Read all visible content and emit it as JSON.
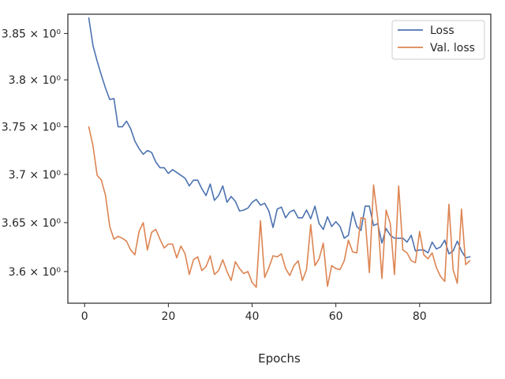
{
  "chart_data": {
    "type": "line",
    "xlabel": "Epochs",
    "ylabel": "",
    "xlim": [
      -4,
      97
    ],
    "ylim": [
      3.568,
      3.871
    ],
    "yscale": "log",
    "grid": false,
    "legend_position": "top-right",
    "x_ticks": [
      {
        "value": 0,
        "label": "0"
      },
      {
        "value": 20,
        "label": "20"
      },
      {
        "value": 40,
        "label": "40"
      },
      {
        "value": 60,
        "label": "60"
      },
      {
        "value": 80,
        "label": "80"
      }
    ],
    "y_ticks": [
      {
        "value": 3.6,
        "label": "3.6 × 10⁰"
      },
      {
        "value": 3.65,
        "label": "3.65 × 10⁰"
      },
      {
        "value": 3.7,
        "label": "3.7 × 10⁰"
      },
      {
        "value": 3.75,
        "label": "3.75 × 10⁰"
      },
      {
        "value": 3.8,
        "label": "3.8 × 10⁰"
      },
      {
        "value": 3.85,
        "label": "3.85 × 10⁰"
      }
    ],
    "series": [
      {
        "name": "Loss",
        "color": "#4c72b0",
        "x": [
          1,
          2,
          3,
          4,
          5,
          6,
          7,
          8,
          9,
          10,
          11,
          12,
          13,
          14,
          15,
          16,
          17,
          18,
          19,
          20,
          21,
          22,
          23,
          24,
          25,
          26,
          27,
          28,
          29,
          30,
          31,
          32,
          33,
          34,
          35,
          36,
          37,
          38,
          39,
          40,
          41,
          42,
          43,
          44,
          45,
          46,
          47,
          48,
          49,
          50,
          51,
          52,
          53,
          54,
          55,
          56,
          57,
          58,
          59,
          60,
          61,
          62,
          63,
          64,
          65,
          66,
          67,
          68,
          69,
          70,
          71,
          72,
          73,
          74,
          75,
          76,
          77,
          78,
          79,
          80,
          81,
          82,
          83,
          84,
          85,
          86,
          87,
          88,
          89,
          90,
          91,
          92
        ],
        "y": [
          3.867,
          3.837,
          3.82,
          3.805,
          3.791,
          3.779,
          3.78,
          3.75,
          3.75,
          3.756,
          3.748,
          3.735,
          3.727,
          3.721,
          3.725,
          3.723,
          3.713,
          3.707,
          3.707,
          3.701,
          3.705,
          3.702,
          3.699,
          3.696,
          3.688,
          3.694,
          3.694,
          3.685,
          3.678,
          3.69,
          3.673,
          3.678,
          3.688,
          3.671,
          3.677,
          3.672,
          3.662,
          3.663,
          3.665,
          3.671,
          3.674,
          3.668,
          3.67,
          3.662,
          3.645,
          3.664,
          3.666,
          3.655,
          3.661,
          3.663,
          3.655,
          3.655,
          3.663,
          3.654,
          3.667,
          3.649,
          3.643,
          3.656,
          3.646,
          3.651,
          3.646,
          3.634,
          3.637,
          3.661,
          3.646,
          3.642,
          3.667,
          3.667,
          3.647,
          3.649,
          3.629,
          3.644,
          3.637,
          3.634,
          3.634,
          3.634,
          3.63,
          3.637,
          3.621,
          3.622,
          3.622,
          3.619,
          3.63,
          3.623,
          3.625,
          3.632,
          3.618,
          3.621,
          3.631,
          3.621,
          3.614,
          3.615
        ]
      },
      {
        "name": "Val. loss",
        "color": "#dd8452",
        "x": [
          1,
          2,
          3,
          4,
          5,
          6,
          7,
          8,
          9,
          10,
          11,
          12,
          13,
          14,
          15,
          16,
          17,
          18,
          19,
          20,
          21,
          22,
          23,
          24,
          25,
          26,
          27,
          28,
          29,
          30,
          31,
          32,
          33,
          34,
          35,
          36,
          37,
          38,
          39,
          40,
          41,
          42,
          43,
          44,
          45,
          46,
          47,
          48,
          49,
          50,
          51,
          52,
          53,
          54,
          55,
          56,
          57,
          58,
          59,
          60,
          61,
          62,
          63,
          64,
          65,
          66,
          67,
          68,
          69,
          70,
          71,
          72,
          73,
          74,
          75,
          76,
          77,
          78,
          79,
          80,
          81,
          82,
          83,
          84,
          85,
          86,
          87,
          88,
          89,
          90,
          91,
          92
        ],
        "y": [
          3.75,
          3.73,
          3.699,
          3.694,
          3.678,
          3.646,
          3.633,
          3.636,
          3.634,
          3.631,
          3.622,
          3.617,
          3.641,
          3.65,
          3.622,
          3.64,
          3.643,
          3.633,
          3.624,
          3.628,
          3.628,
          3.614,
          3.626,
          3.618,
          3.597,
          3.612,
          3.615,
          3.601,
          3.605,
          3.616,
          3.597,
          3.601,
          3.612,
          3.6,
          3.591,
          3.61,
          3.603,
          3.598,
          3.6,
          3.589,
          3.584,
          3.652,
          3.594,
          3.604,
          3.616,
          3.615,
          3.618,
          3.603,
          3.596,
          3.606,
          3.611,
          3.591,
          3.602,
          3.648,
          3.606,
          3.613,
          3.629,
          3.585,
          3.606,
          3.603,
          3.602,
          3.611,
          3.632,
          3.62,
          3.619,
          3.655,
          3.654,
          3.599,
          3.689,
          3.654,
          3.593,
          3.663,
          3.649,
          3.597,
          3.688,
          3.622,
          3.619,
          3.611,
          3.609,
          3.641,
          3.617,
          3.613,
          3.619,
          3.604,
          3.595,
          3.59,
          3.669,
          3.602,
          3.588,
          3.664,
          3.607,
          3.611
        ]
      }
    ]
  }
}
